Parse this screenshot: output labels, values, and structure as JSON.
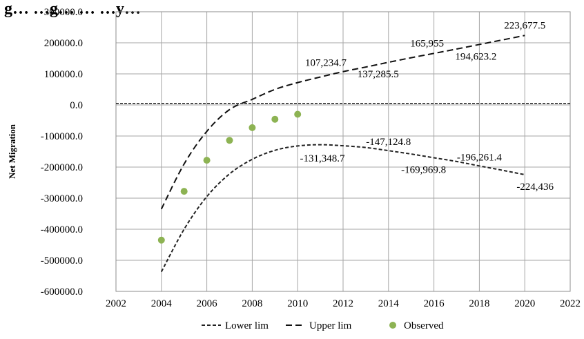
{
  "chart_data": {
    "type": "scatter",
    "title": "g… …g… … …y…",
    "xlabel": "",
    "ylabel": "Net Migration",
    "xlim": [
      2002,
      2022
    ],
    "ylim": [
      -600000,
      300000
    ],
    "x_ticks": [
      "2002",
      "2004",
      "2006",
      "2008",
      "2010",
      "2012",
      "2014",
      "2016",
      "2018",
      "2020",
      "2022"
    ],
    "y_ticks": [
      "300000.0",
      "200000.0",
      "100000.0",
      "0.0",
      "-100000.0",
      "-200000.0",
      "-300000.0",
      "-400000.0",
      "-500000.0",
      "-600000.0"
    ],
    "grid": true,
    "legend_position": "bottom",
    "series": [
      {
        "name": "Lower lim",
        "style": "dotted-dash",
        "color": "#222222",
        "x": [
          2004,
          2005,
          2006,
          2007,
          2008,
          2009,
          2010,
          2011,
          2012,
          2013,
          2014,
          2015,
          2016,
          2017,
          2018,
          2019,
          2020
        ],
        "y": [
          -537000,
          -400000,
          -295000,
          -222000,
          -175000,
          -146000,
          -132000,
          -128000,
          -131349,
          -137000,
          -147125,
          -158000,
          -169970,
          -182000,
          -196261,
          -210000,
          -224436
        ]
      },
      {
        "name": "Upper lim",
        "style": "dashed",
        "color": "#111111",
        "x": [
          2004,
          2005,
          2006,
          2007,
          2008,
          2009,
          2010,
          2011,
          2012,
          2013,
          2014,
          2015,
          2016,
          2017,
          2018,
          2019,
          2020
        ],
        "y": [
          -335000,
          -190000,
          -85000,
          -15000,
          18000,
          50000,
          72000,
          90000,
          107235,
          122000,
          137286,
          152000,
          165955,
          180000,
          194623,
          209000,
          223678
        ]
      },
      {
        "name": "Observed",
        "style": "markers",
        "color": "#8db353",
        "x": [
          2004,
          2005,
          2006,
          2007,
          2008,
          2009,
          2010
        ],
        "y": [
          -435000,
          -278000,
          -178000,
          -114000,
          -73000,
          -46000,
          -30000
        ]
      }
    ],
    "zero_line": {
      "y": 5000
    },
    "annotations": [
      {
        "text": "223,677.5",
        "x": 2020,
        "y": 223678,
        "dx": 0,
        "dy": -10
      },
      {
        "text": "165,955",
        "x": 2016,
        "y": 165955,
        "dx": -10,
        "dy": -10
      },
      {
        "text": "194,623.2",
        "x": 2018,
        "y": 194623,
        "dx": -5,
        "dy": 22
      },
      {
        "text": "107,234.7",
        "x": 2012,
        "y": 107235,
        "dx": -25,
        "dy": -8
      },
      {
        "text": "137,285.5",
        "x": 2014,
        "y": 137286,
        "dx": -15,
        "dy": 22
      },
      {
        "text": "-147,124.8",
        "x": 2014,
        "y": -147125,
        "dx": 0,
        "dy": -8
      },
      {
        "text": "-131,348.7",
        "x": 2012,
        "y": -131349,
        "dx": -30,
        "dy": 23
      },
      {
        "text": "-196,261.4",
        "x": 2018,
        "y": -196261,
        "dx": 0,
        "dy": -8
      },
      {
        "text": "-169,969.8",
        "x": 2016,
        "y": -169970,
        "dx": -15,
        "dy": 22
      },
      {
        "text": "-224,436",
        "x": 2020,
        "y": -224436,
        "dx": 15,
        "dy": 22
      }
    ]
  }
}
